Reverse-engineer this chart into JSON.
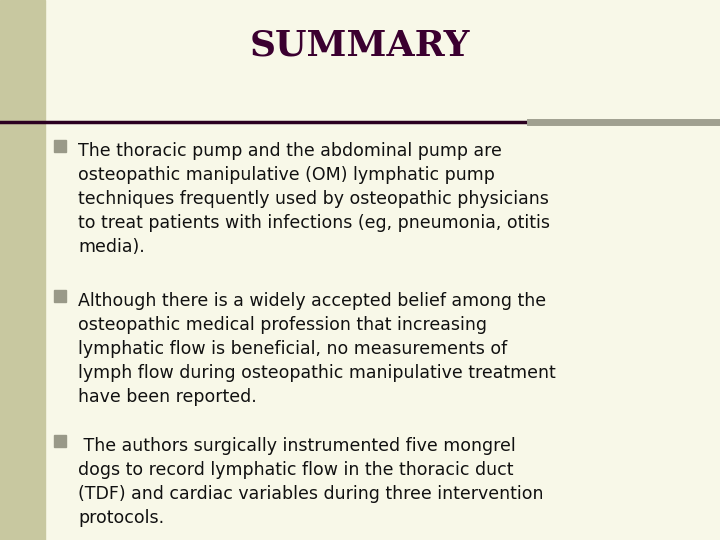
{
  "title": "SUMMARY",
  "title_color": "#3b0030",
  "title_fontsize": 26,
  "background_color": "#f8f8e8",
  "left_bar_color": "#c8c8a0",
  "separator_left_color": "#2b0020",
  "separator_right_color": "#a0a090",
  "bullet_color": "#999988",
  "text_color": "#111111",
  "bullet_size": 9,
  "body_fontsize": 12.5,
  "bullets": [
    "The thoracic pump and the abdominal pump are\nosteopathic manipulative (OM) lymphatic pump\ntechniques frequently used by osteopathic physicians\nto treat patients with infections (eg, pneumonia, otitis\nmedia).",
    "Although there is a widely accepted belief among the\nosteopathic medical profession that increasing\nlymphatic flow is beneficial, no measurements of\nlymph flow during osteopathic manipulative treatment\nhave been reported.",
    " The authors surgically instrumented five mongrel\ndogs to record lymphatic flow in the thoracic duct\n(TDF) and cardiac variables during three intervention\nprotocols."
  ]
}
